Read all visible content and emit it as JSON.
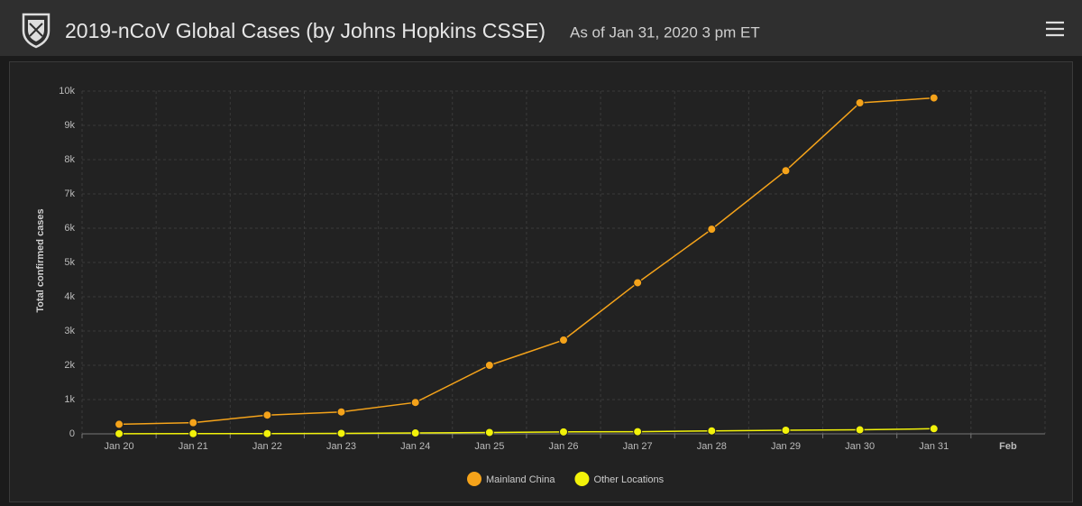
{
  "header": {
    "title": "2019-nCoV Global Cases (by Johns Hopkins CSSE)",
    "subtitle": "As of Jan 31, 2020 3 pm ET"
  },
  "chart_data": {
    "type": "line",
    "ylabel": "Total confirmed cases",
    "categories": [
      "Jan 20",
      "Jan 21",
      "Jan 22",
      "Jan 23",
      "Jan 24",
      "Jan 25",
      "Jan 26",
      "Jan 27",
      "Jan 28",
      "Jan 29",
      "Jan 30",
      "Jan 31",
      "Feb"
    ],
    "series": [
      {
        "name": "Mainland China",
        "color": "#f5a31a",
        "values": [
          278,
          326,
          547,
          639,
          916,
          2000,
          2737,
          4409,
          5970,
          7678,
          9658,
          9800,
          null
        ]
      },
      {
        "name": "Other Locations",
        "color": "#f2f20a",
        "values": [
          4,
          6,
          8,
          14,
          25,
          40,
          57,
          64,
          87,
          105,
          118,
          150,
          null
        ]
      }
    ],
    "ylim": [
      0,
      10000
    ],
    "yticks": [
      0,
      {
        "value": 1000,
        "label": "1k"
      },
      {
        "value": 2000,
        "label": "2k"
      },
      {
        "value": 3000,
        "label": "3k"
      },
      {
        "value": 4000,
        "label": "4k"
      },
      {
        "value": 5000,
        "label": "5k"
      },
      {
        "value": 6000,
        "label": "6k"
      },
      {
        "value": 7000,
        "label": "7k"
      },
      {
        "value": 8000,
        "label": "8k"
      },
      {
        "value": 9000,
        "label": "9k"
      },
      {
        "value": 10000,
        "label": "10k"
      }
    ],
    "grid": true,
    "legend": "bottom"
  }
}
